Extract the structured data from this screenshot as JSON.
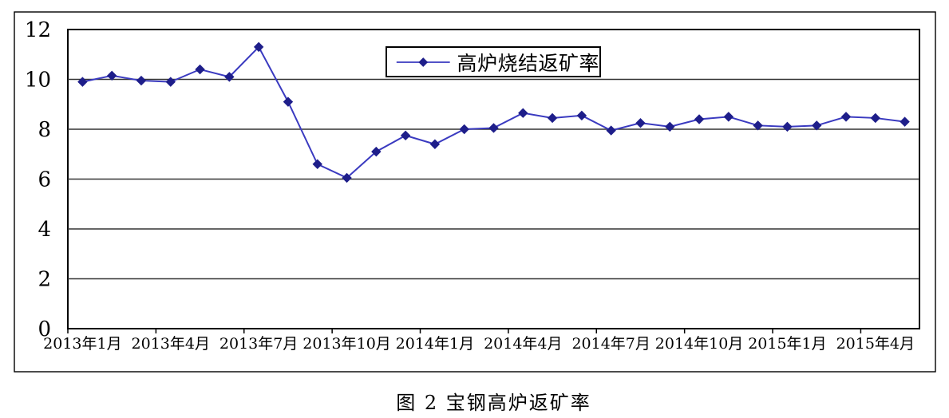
{
  "caption": {
    "text": "图 2  宝钢高炉返矿率"
  },
  "legend": {
    "label": "高炉烧结返矿率"
  },
  "colors": {
    "line": "#3A3AC0",
    "marker": "#1E1E8A",
    "grid": "#333333",
    "axis": "#000000",
    "frame": "#000000",
    "background": "#FFFFFF"
  },
  "chart_data": {
    "type": "line",
    "title": "",
    "legend_position": "top-center",
    "grid": "horizontal",
    "marker": "diamond",
    "ylim": [
      0,
      12
    ],
    "yticks": [
      0,
      2,
      4,
      6,
      8,
      10,
      12
    ],
    "x_tick_labels": [
      "2013年1月",
      "2013年4月",
      "2013年7月",
      "2013年10月",
      "2014年1月",
      "2014年4月",
      "2014年7月",
      "2014年10月",
      "2015年1月",
      "2015年4月"
    ],
    "x_tick_label_indices": [
      0,
      3,
      6,
      9,
      12,
      15,
      18,
      21,
      24,
      27
    ],
    "categories": [
      "2013年1月",
      "2013年2月",
      "2013年3月",
      "2013年4月",
      "2013年5月",
      "2013年6月",
      "2013年7月",
      "2013年8月",
      "2013年9月",
      "2013年10月",
      "2013年11月",
      "2013年12月",
      "2014年1月",
      "2014年2月",
      "2014年3月",
      "2014年4月",
      "2014年5月",
      "2014年6月",
      "2014年7月",
      "2014年8月",
      "2014年9月",
      "2014年10月",
      "2014年11月",
      "2014年12月",
      "2015年1月",
      "2015年2月",
      "2015年3月",
      "2015年4月",
      "2015年5月"
    ],
    "series": [
      {
        "name": "高炉烧结返矿率",
        "values": [
          9.9,
          10.15,
          9.95,
          9.9,
          10.4,
          10.1,
          11.3,
          9.1,
          6.6,
          6.05,
          7.1,
          7.75,
          7.4,
          8.0,
          8.05,
          8.65,
          8.45,
          8.55,
          7.95,
          8.25,
          8.1,
          8.4,
          8.5,
          8.15,
          8.1,
          8.15,
          8.5,
          8.45,
          8.3
        ]
      }
    ]
  }
}
